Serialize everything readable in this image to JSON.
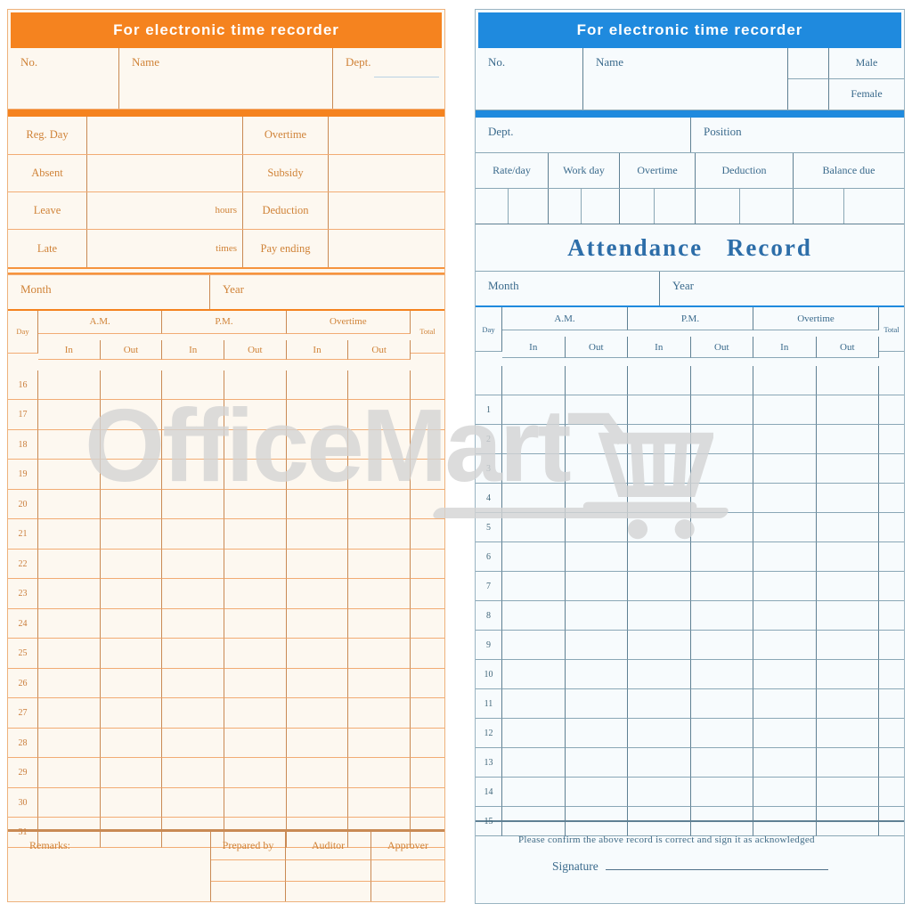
{
  "watermark": {
    "text": "OfficeMart",
    "icon": "shopping-cart-icon",
    "color": "#d4d4d4"
  },
  "left_card": {
    "accent": "#f5831f",
    "title": "For electronic time recorder",
    "info": {
      "no_label": "No.",
      "name_label": "Name",
      "dept_label": "Dept."
    },
    "summary": [
      {
        "label": "Reg. Day",
        "unit": "",
        "label2": "Overtime"
      },
      {
        "label": "Absent",
        "unit": "",
        "label2": "Subsidy"
      },
      {
        "label": "Leave",
        "unit": "hours",
        "label2": "Deduction"
      },
      {
        "label": "Late",
        "unit": "times",
        "label2": "Pay ending"
      }
    ],
    "month_label": "Month",
    "year_label": "Year",
    "table": {
      "day_label": "Day",
      "am_label": "A.M.",
      "pm_label": "P.M.",
      "overtime_label": "Overtime",
      "total_label": "Total",
      "in_label": "In",
      "out_label": "Out",
      "days": [
        "16",
        "17",
        "18",
        "19",
        "20",
        "21",
        "22",
        "23",
        "24",
        "25",
        "26",
        "27",
        "28",
        "29",
        "30",
        "31"
      ]
    },
    "footer": {
      "remarks_label": "Remarks:",
      "prepared_label": "Prepared by",
      "auditor_label": "Auditor",
      "approver_label": "Approver"
    }
  },
  "right_card": {
    "accent": "#1f8ade",
    "title": "For electronic time recorder",
    "info": {
      "no_label": "No.",
      "name_label": "Name",
      "male_label": "Male",
      "female_label": "Female"
    },
    "dept_label": "Dept.",
    "position_label": "Position",
    "summary_headers": [
      "Rate/day",
      "Work day",
      "Overtime",
      "Deduction",
      "Balance due"
    ],
    "attendance_title": "Attendance  Record",
    "month_label": "Month",
    "year_label": "Year",
    "table": {
      "day_label": "Day",
      "am_label": "A.M.",
      "pm_label": "P.M.",
      "overtime_label": "Overtime",
      "total_label": "Total",
      "in_label": "In",
      "out_label": "Out",
      "days": [
        "",
        "1",
        "2",
        "3",
        "4",
        "5",
        "6",
        "7",
        "8",
        "9",
        "10",
        "11",
        "12",
        "13",
        "14",
        "15"
      ]
    },
    "footer": {
      "note": "Please confirm the above record is correct and sign it as acknowledged",
      "signature_label": "Signature"
    }
  }
}
